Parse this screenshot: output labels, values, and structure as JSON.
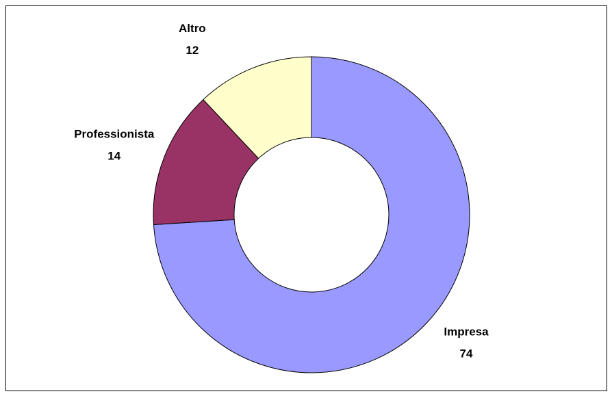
{
  "chart_data": {
    "type": "donut",
    "categories": [
      "Impresa",
      "Professionista",
      "Altro"
    ],
    "values": [
      74,
      14,
      12
    ],
    "colors": [
      "#9999ff",
      "#993366",
      "#ffffcc"
    ]
  }
}
